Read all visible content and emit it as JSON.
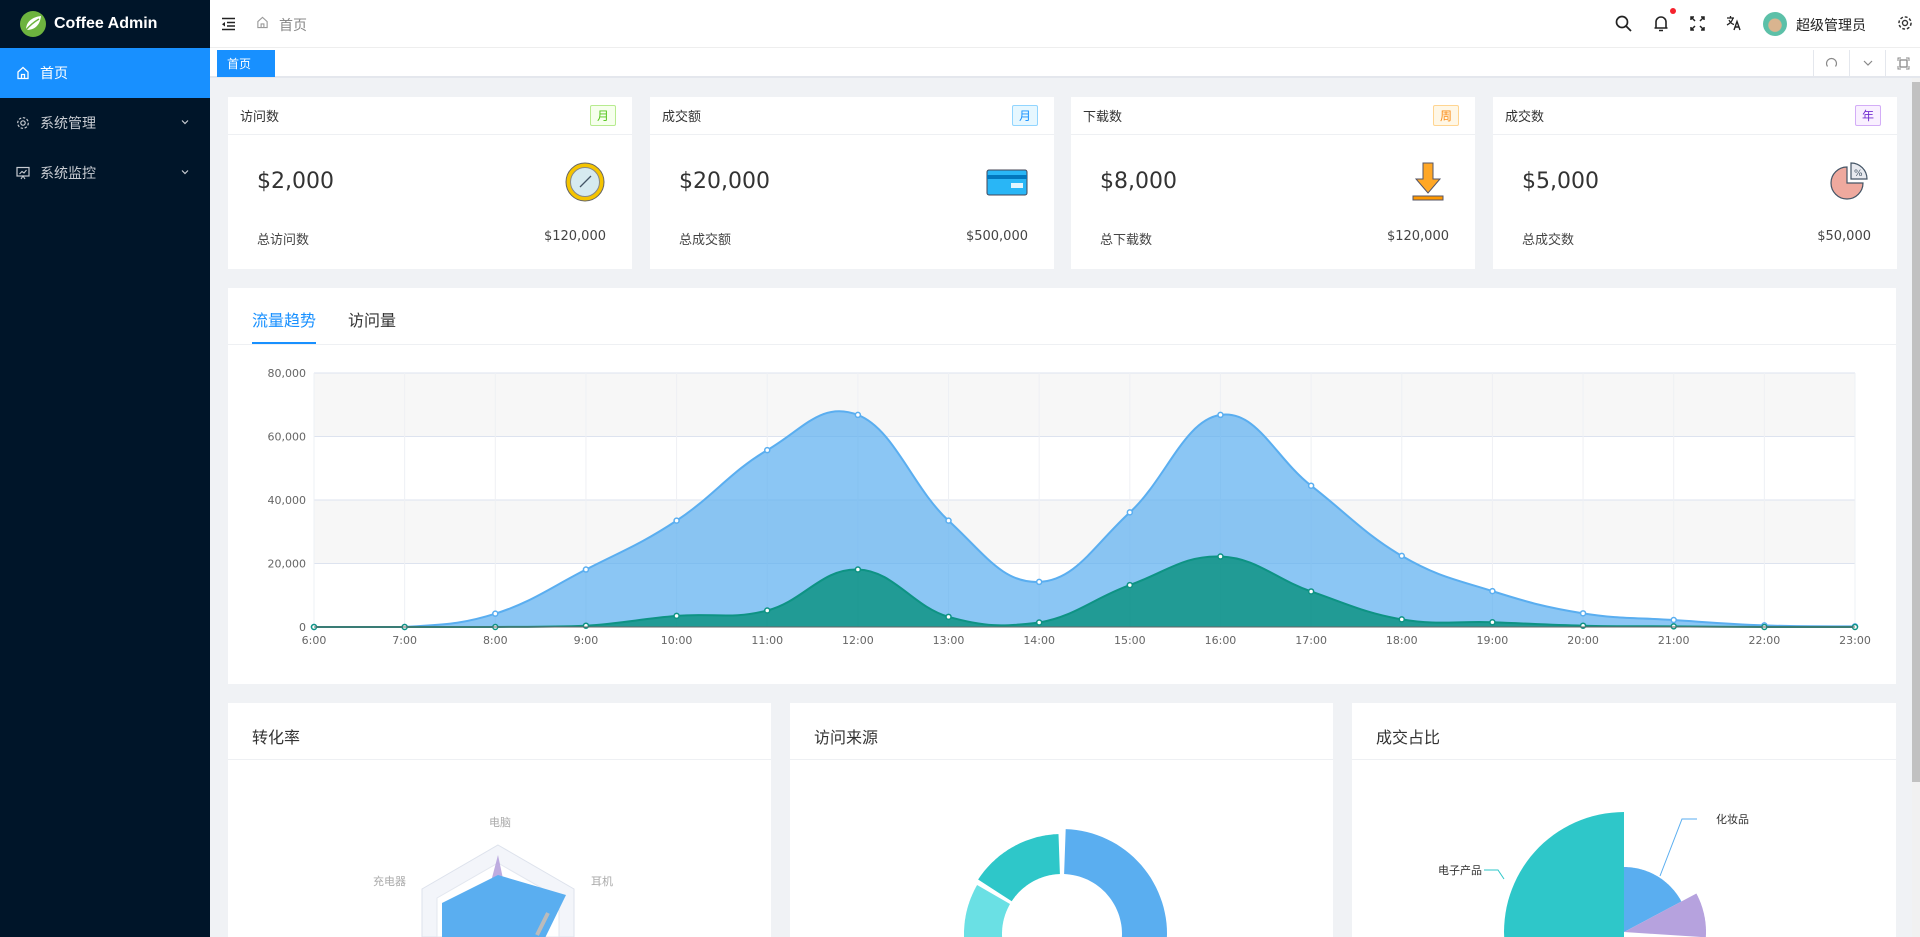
{
  "app": {
    "title": "Coffee Admin"
  },
  "sidebar": {
    "items": [
      {
        "label": "首页",
        "icon": "home-icon",
        "active": true
      },
      {
        "label": "系统管理",
        "icon": "gear-icon"
      },
      {
        "label": "系统监控",
        "icon": "monitor-icon"
      }
    ]
  },
  "header": {
    "breadcrumb": "首页",
    "user": "超级管理员",
    "notification_dot": true
  },
  "tabs": {
    "active": "首页"
  },
  "stats": [
    {
      "title": "访问数",
      "tag": "月",
      "tag_color": "#52c41a",
      "tag_bg": "#f6ffed",
      "tag_border": "#b7eb8f",
      "value": "$2,000",
      "label": "总访问数",
      "total": "$120,000",
      "icon": "clock-icon"
    },
    {
      "title": "成交额",
      "tag": "月",
      "tag_color": "#1890ff",
      "tag_bg": "#e6f7ff",
      "tag_border": "#91d5ff",
      "value": "$20,000",
      "label": "总成交额",
      "total": "$500,000",
      "icon": "credit-card-icon"
    },
    {
      "title": "下载数",
      "tag": "周",
      "tag_color": "#fa8c16",
      "tag_bg": "#fff7e6",
      "tag_border": "#ffd591",
      "value": "$8,000",
      "label": "总下载数",
      "total": "$120,000",
      "icon": "download-icon"
    },
    {
      "title": "成交数",
      "tag": "年",
      "tag_color": "#722ed1",
      "tag_bg": "#f9f0ff",
      "tag_border": "#d3adf7",
      "value": "$5,000",
      "label": "总成交数",
      "total": "$50,000",
      "icon": "pie-percent-icon"
    }
  ],
  "trend": {
    "tabs": [
      "流量趋势",
      "访问量"
    ],
    "active_tab": 0
  },
  "chart_data": {
    "type": "area",
    "x": [
      "6:00",
      "7:00",
      "8:00",
      "9:00",
      "10:00",
      "11:00",
      "12:00",
      "13:00",
      "14:00",
      "15:00",
      "16:00",
      "17:00",
      "18:00",
      "19:00",
      "20:00",
      "21:00",
      "22:00",
      "23:00"
    ],
    "ylim": [
      0,
      80000
    ],
    "yticks": [
      "0",
      "20,000",
      "40,000",
      "60,000",
      "80,000"
    ],
    "grid": true,
    "series": [
      {
        "color": "#5aaef0",
        "values": [
          0,
          0,
          4200,
          18100,
          33500,
          55700,
          66800,
          33500,
          14200,
          36100,
          66800,
          44500,
          22400,
          11300,
          4300,
          2200,
          500,
          200
        ]
      },
      {
        "color": "#0e9384",
        "values": [
          0,
          0,
          0,
          400,
          3500,
          5200,
          18100,
          3200,
          1400,
          13200,
          22200,
          11200,
          2400,
          1500,
          400,
          200,
          0,
          0
        ]
      }
    ]
  },
  "bottom": {
    "conversion": {
      "title": "转化率",
      "labels": [
        "电脑",
        "耳机",
        "充电器"
      ]
    },
    "source": {
      "title": "访问来源"
    },
    "share": {
      "title": "成交占比",
      "labels": [
        "化妆品",
        "电子产品"
      ]
    }
  }
}
